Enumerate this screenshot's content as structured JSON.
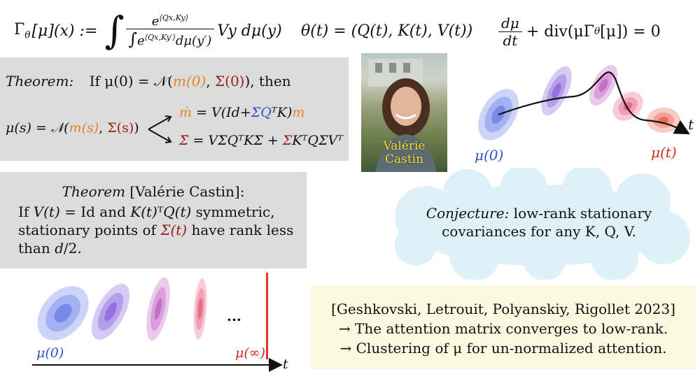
{
  "formulas": {
    "gamma_lhs": "Γ",
    "gamma_sub": "θ",
    "gamma_arg": "[μ](x) :=",
    "gamma_num": "e",
    "gamma_num_exp": "⟨Qx,Ky⟩",
    "gamma_den": "e",
    "gamma_den_exp": "⟨Qx,Ky′⟩",
    "gamma_den_tail": "dμ(y′)",
    "gamma_tail": "Vy dμ(y)",
    "theta_def": "θ(t) = (Q(t), K(t), V(t))",
    "continuity_num": "dμ",
    "continuity_den": "dt",
    "continuity_tail": "+ div(μΓ",
    "continuity_sub": "θ",
    "continuity_end": "[μ]) = 0"
  },
  "theorem1": {
    "label": "Theorem:",
    "lead": "If μ(0) = 𝒩(",
    "m0": "m(0)",
    "comma": ", ",
    "s0": "Σ(0)",
    "tail": "), then",
    "mu_s": "μ(s) = 𝒩(",
    "ms": "m(s)",
    "ss": "Σ(s)",
    "close": ")",
    "mdot": "ṁ",
    "mdot_eq_a": " = V(Id+",
    "mdot_sq": "ΣQ",
    "mdot_eq_b": "ᵀK)",
    "mdot_m": "m",
    "sdot": "Σ̇",
    "sdot_eq_a": " = VΣQ",
    "sdot_eq_b": "ᵀKΣ + ",
    "sdot_sig": "Σ",
    "sdot_eq_c": "Kᵀ",
    "sdot_eq_d": "QΣ",
    "sdot_eq_e": "Vᵀ"
  },
  "photo": {
    "caption_line1": "Valérie",
    "caption_line2": "Castin"
  },
  "flow": {
    "label_start": "μ(0)",
    "label_end": "μ(t)",
    "axis_label": "t"
  },
  "theorem2": {
    "title_it": "Theorem",
    "title_rest": " [Valérie Castin]:",
    "line1_a": "If ",
    "line1_b": "V(t)",
    "line1_c": " = Id and ",
    "line1_d": "K(t)",
    "line1_e": "ᵀ",
    "line1_f": "Q(t)",
    "line1_g": " symmetric,",
    "line2_a": "stationary points of ",
    "line2_b": "Σ(t)",
    "line2_c": " have rank less",
    "line3_a": "than ",
    "line3_b": "d",
    "line3_c": "/2."
  },
  "conjecture": {
    "label": "Conjecture:",
    "line1": " low-rank stationary",
    "line2": "covariances for any K, Q, V."
  },
  "collapse": {
    "label_start": "μ(0)",
    "ellipsis": "...",
    "label_end": "μ(∞)",
    "axis_label": "t"
  },
  "reference": {
    "line1": "[Geshkovski, Letrouit, Polyanskiy, Rigollet 2023]",
    "line2": "→ The attention matrix converges to low-rank.",
    "line3": "→ Clustering of μ for un-normalized attention."
  },
  "colors": {
    "orange": "#e8822a",
    "blue": "#2f55c8",
    "dark_red": "#9b1c1c",
    "red": "#d62b1f",
    "gray_box": "#dcdcdc",
    "yellow_box": "#fdf8e0",
    "cloud": "#dff1f8",
    "caption_yellow": "#f2e024"
  }
}
